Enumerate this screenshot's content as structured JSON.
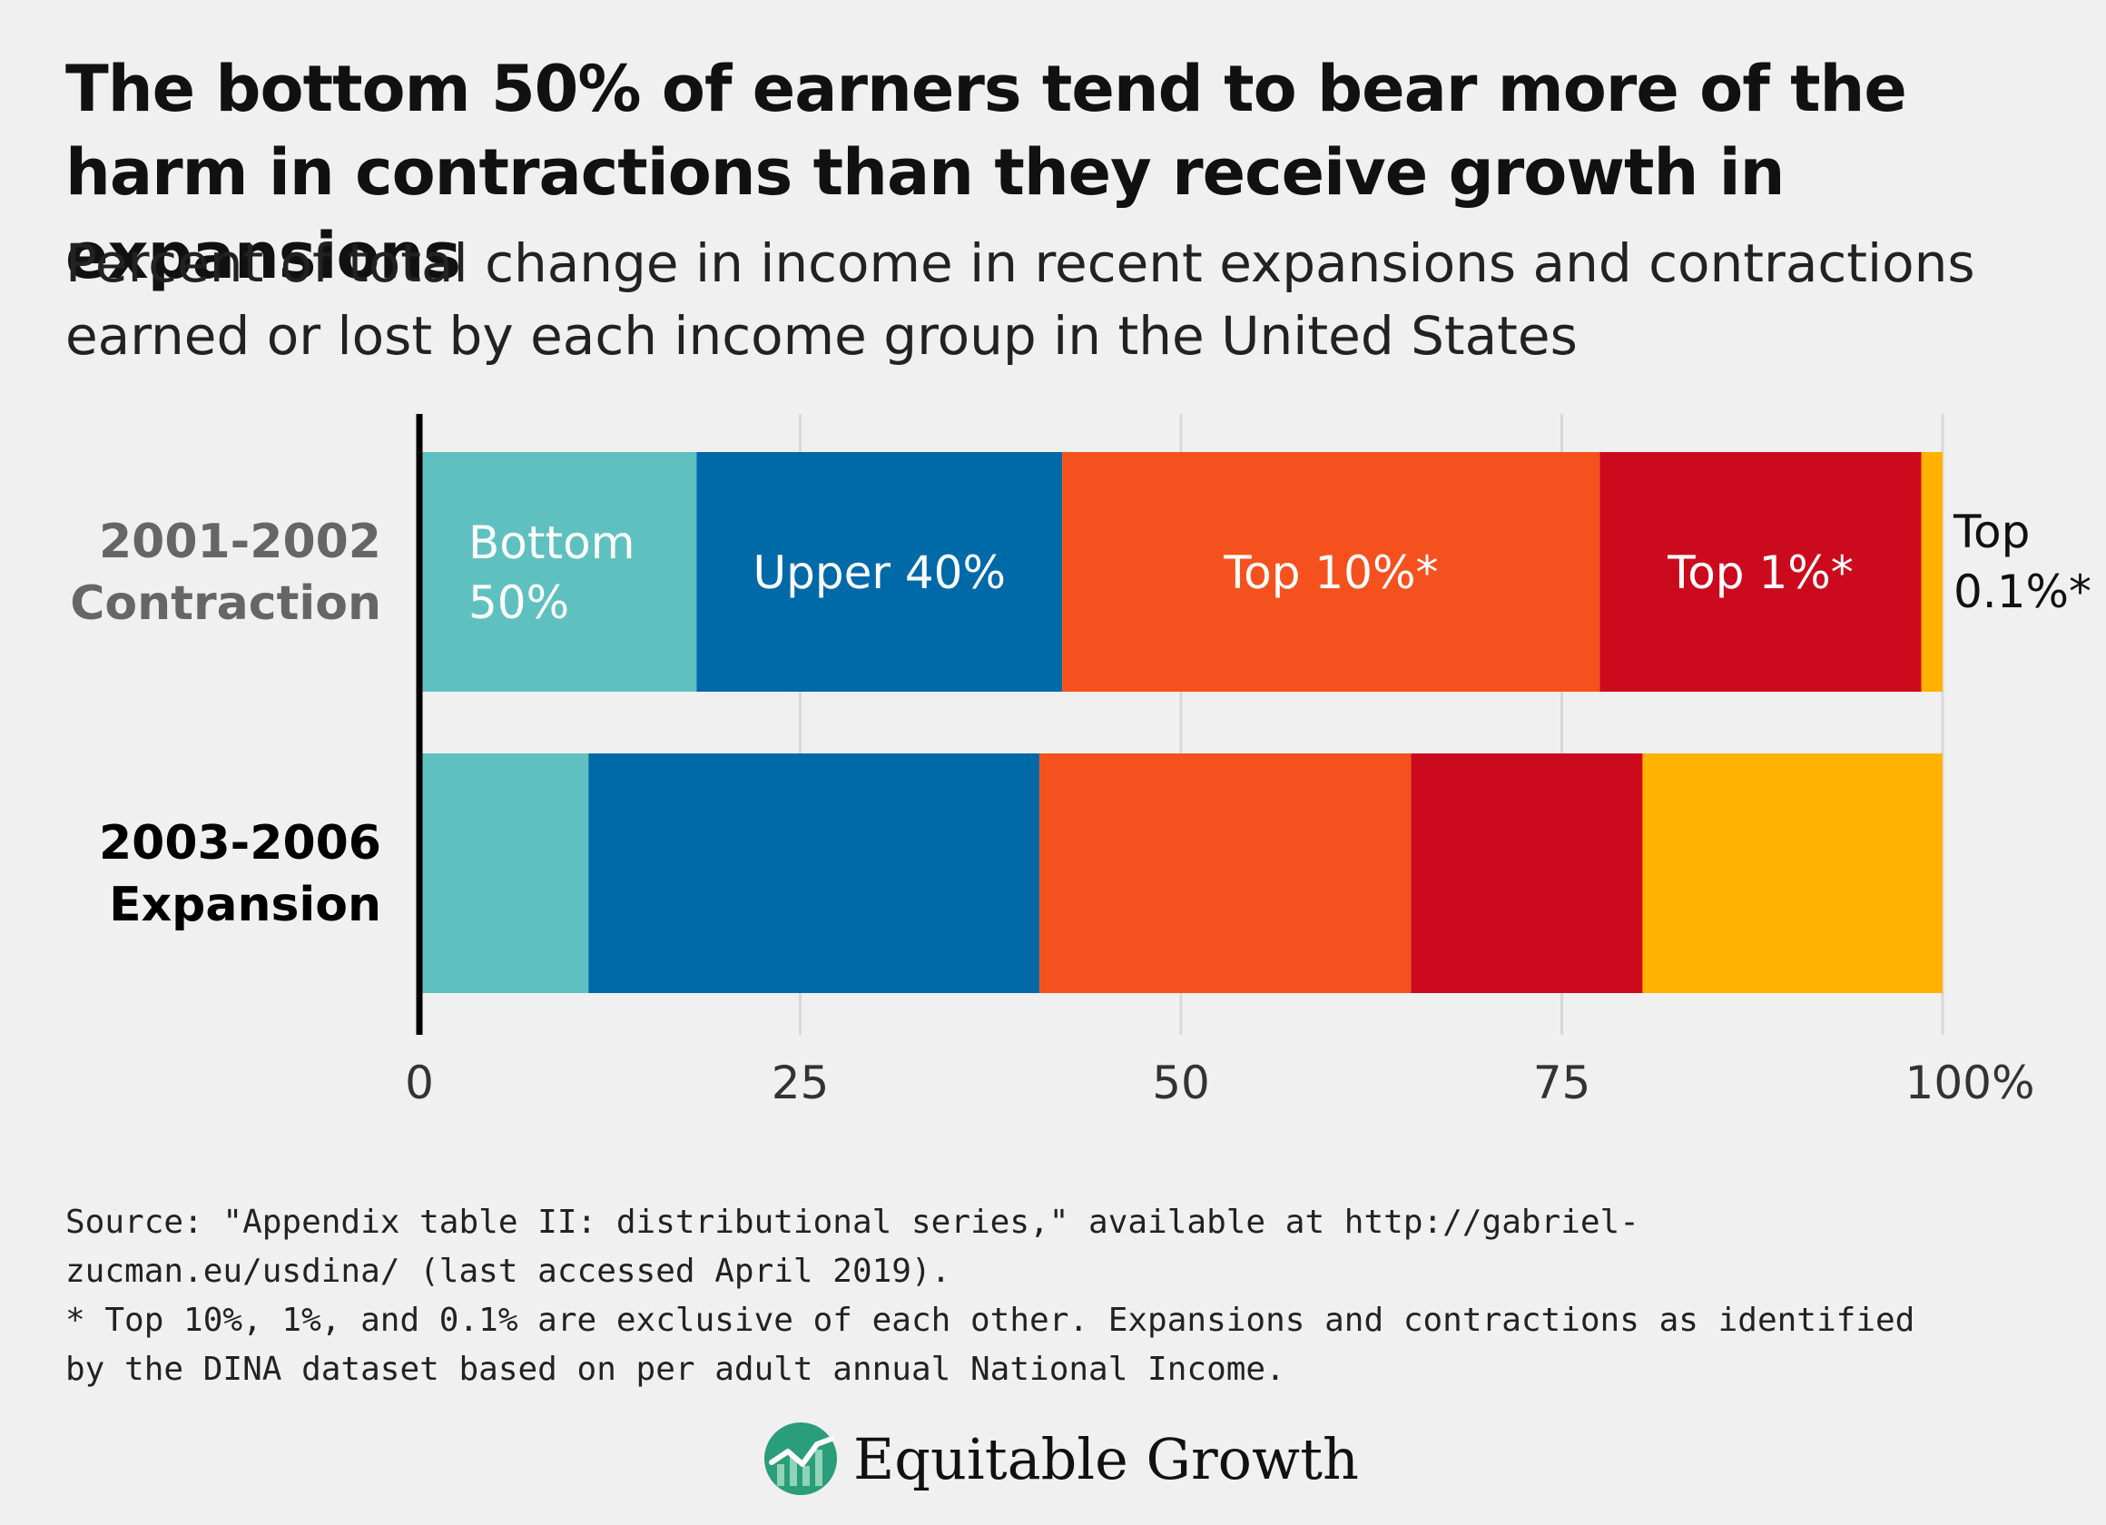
{
  "title": "The bottom 50% of earners tend to bear more of the harm in contractions than they receive growth in expansions",
  "subtitle": "Percent of total change in income in recent expansions and contractions earned or lost by each income group in the United States",
  "footnotes": {
    "source": "Source: \"Appendix table II: distributional series,\" available at http://gabriel-zucman.eu/usdina/ (last accessed April 2019).",
    "note": "* Top 10%, 1%, and 0.1% are exclusive of each other. Expansions and contractions as identified by the DINA dataset based on per adult annual National Income."
  },
  "logo": {
    "text": "Equitable Growth",
    "icon": "rising-line-logo-icon"
  },
  "chart_data": {
    "type": "bar",
    "orientation": "horizontal",
    "stacked": true,
    "categories": [
      "2001-2002 Contraction",
      "2003-2006 Expansion"
    ],
    "category_lines": [
      [
        "2001-2002",
        "Contraction"
      ],
      [
        "2003-2006",
        "Expansion"
      ]
    ],
    "category_colors": [
      "#666666",
      "#000000"
    ],
    "series": [
      {
        "name": "Bottom 50%",
        "label_lines": [
          "Bottom",
          "50%"
        ],
        "color": "#5fc1bf",
        "values": [
          18.2,
          11.1
        ]
      },
      {
        "name": "Upper 40%",
        "label_lines": [
          "Upper 40%"
        ],
        "color": "#0069a8",
        "values": [
          24.0,
          29.6
        ]
      },
      {
        "name": "Top 10%*",
        "label_lines": [
          "Top 10%*"
        ],
        "color": "#f5511e",
        "values": [
          35.3,
          24.4
        ]
      },
      {
        "name": "Top 1%*",
        "label_lines": [
          "Top 1%*"
        ],
        "color": "#cc0a1e",
        "values": [
          21.1,
          15.2
        ]
      },
      {
        "name": "Top 0.1%*",
        "label_lines": [
          "Top",
          "0.1%*"
        ],
        "color": "#ffb300",
        "values": [
          1.4,
          19.7
        ]
      }
    ],
    "labeled_category_index": 0,
    "xlim": [
      0,
      100
    ],
    "xticks": [
      0,
      25,
      50,
      75,
      100
    ],
    "xtick_labels": [
      "0",
      "25",
      "50",
      "75",
      "100%"
    ],
    "grid": true
  }
}
